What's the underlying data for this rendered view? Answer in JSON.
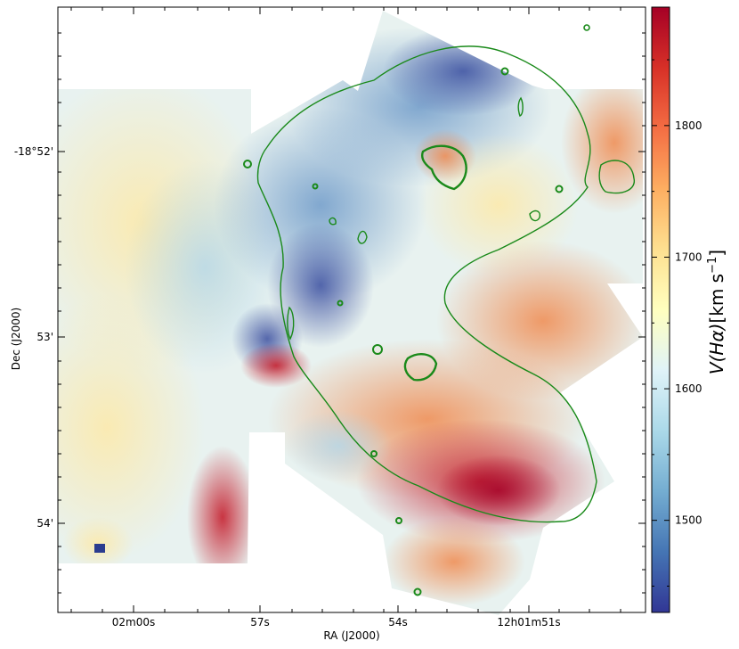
{
  "chart_data": {
    "type": "heatmap",
    "title": "",
    "xlabel": "RA (J2000)",
    "ylabel": "Dec (J2000)",
    "x_ticks": [
      "02m00s",
      "57s",
      "54s",
      "12h01m51s"
    ],
    "y_ticks": [
      "-18°52'",
      "53'",
      "54'"
    ],
    "colorbar": {
      "label_main": "V(Hα)",
      "label_unit": "[km s",
      "label_exp": "−1",
      "label_close": "]",
      "ticks": [
        1500,
        1600,
        1700,
        1800
      ],
      "range": [
        1430,
        1890
      ],
      "colormap": "RdYlBu_r",
      "colors": [
        "#313695",
        "#4575b4",
        "#74add1",
        "#abd9e9",
        "#e0f3f8",
        "#ffffbf",
        "#fee090",
        "#fdae61",
        "#f46d43",
        "#d73027",
        "#a50026"
      ]
    },
    "contour_color": "#1a8a1a",
    "velocity_regions": [
      {
        "region": "upper-left field",
        "velocity": 1640
      },
      {
        "region": "upper-right lobe",
        "velocity": 1530
      },
      {
        "region": "central dark ridge",
        "velocity": 1470
      },
      {
        "region": "right-center field",
        "velocity": 1760
      },
      {
        "region": "lower-right core",
        "velocity": 1860
      },
      {
        "region": "lower-left strip",
        "velocity": 1820
      },
      {
        "region": "bottom tail",
        "velocity": 1720
      }
    ]
  }
}
